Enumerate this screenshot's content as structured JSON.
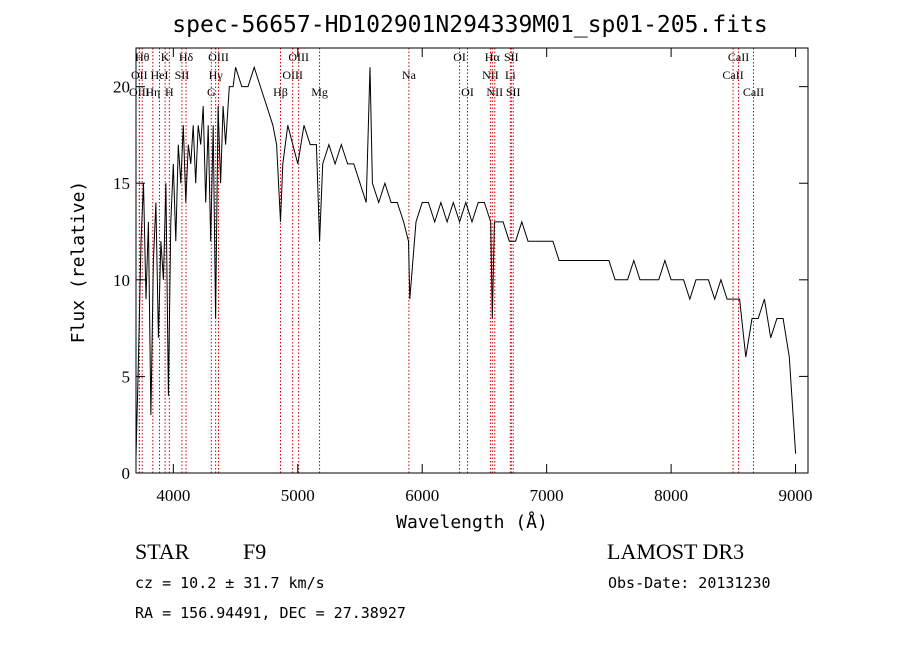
{
  "chart_data": {
    "type": "line",
    "title": "spec-56657-HD102901N294339M01_sp01-205.fits",
    "xlabel": "Wavelength (Å)",
    "ylabel": "Flux (relative)",
    "xlim": [
      3700,
      9100
    ],
    "ylim": [
      0,
      22
    ],
    "xticks": [
      4000,
      5000,
      6000,
      7000,
      8000,
      9000
    ],
    "yticks": [
      0,
      5,
      10,
      15,
      20
    ],
    "grid": false,
    "series": [
      {
        "x": [
          3700,
          3720,
          3740,
          3760,
          3780,
          3800,
          3820,
          3840,
          3860,
          3880,
          3900,
          3920,
          3940,
          3960,
          3980,
          4000,
          4020,
          4040,
          4060,
          4080,
          4100,
          4120,
          4140,
          4160,
          4180,
          4200,
          4220,
          4240,
          4260,
          4280,
          4300,
          4320,
          4340,
          4360,
          4380,
          4400,
          4420,
          4450,
          4480,
          4500,
          4550,
          4600,
          4650,
          4700,
          4750,
          4800,
          4830,
          4861,
          4880,
          4920,
          4960,
          5000,
          5050,
          5100,
          5150,
          5175,
          5200,
          5250,
          5300,
          5350,
          5400,
          5450,
          5500,
          5550,
          5580,
          5600,
          5650,
          5700,
          5750,
          5800,
          5850,
          5890,
          5900,
          5950,
          6000,
          6050,
          6100,
          6150,
          6200,
          6250,
          6300,
          6350,
          6400,
          6450,
          6500,
          6550,
          6563,
          6580,
          6600,
          6650,
          6700,
          6750,
          6800,
          6850,
          6900,
          6950,
          7000,
          7050,
          7100,
          7150,
          7200,
          7250,
          7300,
          7350,
          7400,
          7450,
          7500,
          7550,
          7600,
          7650,
          7700,
          7750,
          7800,
          7850,
          7900,
          7950,
          8000,
          8050,
          8100,
          8150,
          8200,
          8250,
          8300,
          8350,
          8400,
          8450,
          8500,
          8550,
          8600,
          8650,
          8700,
          8750,
          8800,
          8850,
          8900,
          8950,
          9000
        ],
        "y": [
          0.8,
          6,
          12,
          15,
          9,
          13,
          3,
          11,
          14,
          7,
          12,
          10,
          15,
          4,
          13,
          16,
          12,
          17,
          15,
          18,
          14,
          17,
          16,
          18,
          15,
          18,
          17,
          19,
          14,
          18,
          12,
          18,
          8,
          19,
          15,
          19,
          17,
          20,
          20,
          21,
          20,
          20,
          21,
          20,
          19,
          18,
          17,
          13,
          16,
          18,
          17,
          16,
          18,
          17,
          17,
          12,
          16,
          17,
          16,
          17,
          16,
          16,
          15,
          14,
          21,
          15,
          14,
          15,
          14,
          14,
          13,
          12,
          9,
          13,
          14,
          14,
          13,
          14,
          13,
          14,
          13,
          14,
          13,
          14,
          14,
          13,
          8,
          13,
          13,
          13,
          12,
          12,
          13,
          12,
          12,
          12,
          12,
          12,
          11,
          11,
          11,
          11,
          11,
          11,
          11,
          11,
          11,
          10,
          10,
          10,
          11,
          10,
          10,
          10,
          10,
          11,
          10,
          10,
          10,
          9,
          10,
          10,
          10,
          9,
          10,
          9,
          9,
          9,
          6,
          8,
          8,
          9,
          7,
          8,
          8,
          6,
          1
        ]
      }
    ],
    "lines": [
      {
        "labels": [
          "Hθ"
        ],
        "x": 3750,
        "row": 0
      },
      {
        "labels": [
          "OII"
        ],
        "x": 3727,
        "row": 1
      },
      {
        "labels": [
          "OIII"
        ],
        "x": 3727,
        "row": 2
      },
      {
        "labels": [
          "Hη"
        ],
        "x": 3835,
        "row": 2
      },
      {
        "labels": [
          "HeI"
        ],
        "x": 3889,
        "row": 1
      },
      {
        "labels": [
          "K"
        ],
        "x": 3934,
        "row": 0
      },
      {
        "labels": [
          "H"
        ],
        "x": 3968,
        "row": 2
      },
      {
        "labels": [
          "SII"
        ],
        "x": 4069,
        "row": 1
      },
      {
        "labels": [
          "Hδ"
        ],
        "x": 4102,
        "row": 0
      },
      {
        "labels": [
          "OIII"
        ],
        "x": 4363,
        "row": 0
      },
      {
        "labels": [
          "Hγ"
        ],
        "x": 4340,
        "row": 1
      },
      {
        "labels": [
          "G"
        ],
        "x": 4305,
        "row": 2
      },
      {
        "labels": [
          "OIII"
        ],
        "x": 5007,
        "row": 0
      },
      {
        "labels": [
          "OIII"
        ],
        "x": 4959,
        "row": 1
      },
      {
        "labels": [
          "Hβ"
        ],
        "x": 4861,
        "row": 2
      },
      {
        "labels": [
          "Mg"
        ],
        "x": 5175,
        "row": 2
      },
      {
        "labels": [
          "Na"
        ],
        "x": 5893,
        "row": 1
      },
      {
        "labels": [
          "OI"
        ],
        "x": 6300,
        "row": 0
      },
      {
        "labels": [
          "OI"
        ],
        "x": 6364,
        "row": 2
      },
      {
        "labels": [
          "Hα"
        ],
        "x": 6563,
        "row": 0
      },
      {
        "labels": [
          "SII"
        ],
        "x": 6716,
        "row": 0
      },
      {
        "labels": [
          "NII"
        ],
        "x": 6548,
        "row": 1
      },
      {
        "labels": [
          "Li"
        ],
        "x": 6708,
        "row": 1
      },
      {
        "labels": [
          "NII"
        ],
        "x": 6583,
        "row": 2
      },
      {
        "labels": [
          "SII"
        ],
        "x": 6731,
        "row": 2
      },
      {
        "labels": [
          "CaII"
        ],
        "x": 8542,
        "row": 0
      },
      {
        "labels": [
          "CaII"
        ],
        "x": 8498,
        "row": 1
      },
      {
        "labels": [
          "CaII"
        ],
        "x": 8662,
        "row": 2
      }
    ],
    "line_color": "#cc0000"
  },
  "info": {
    "class": "STAR",
    "subclass": "F9",
    "survey": "LAMOST DR3",
    "cz": "cz = 10.2 ± 31.7 km/s",
    "obs_date": "Obs-Date: 20131230",
    "coords": "RA = 156.94491, DEC =  27.38927"
  }
}
